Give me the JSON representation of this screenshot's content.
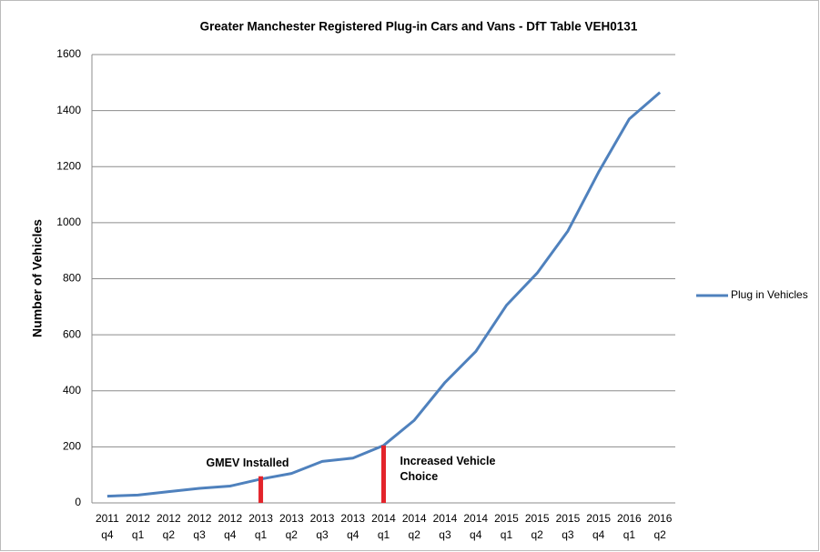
{
  "chart_data": {
    "type": "line",
    "title": "Greater Manchester Registered Plug-in Cars and Vans - DfT Table VEH0131",
    "y_label": "Number of Vehicles",
    "categories": [
      [
        "2011",
        "q4"
      ],
      [
        "2012",
        "q1"
      ],
      [
        "2012",
        "q2"
      ],
      [
        "2012",
        "q3"
      ],
      [
        "2012",
        "q4"
      ],
      [
        "2013",
        "q1"
      ],
      [
        "2013",
        "q2"
      ],
      [
        "2013",
        "q3"
      ],
      [
        "2013",
        "q4"
      ],
      [
        "2014",
        "q1"
      ],
      [
        "2014",
        "q2"
      ],
      [
        "2014",
        "q3"
      ],
      [
        "2014",
        "q4"
      ],
      [
        "2015",
        "q1"
      ],
      [
        "2015",
        "q2"
      ],
      [
        "2015",
        "q3"
      ],
      [
        "2015",
        "q4"
      ],
      [
        "2016",
        "q1"
      ],
      [
        "2016",
        "q2"
      ]
    ],
    "series": [
      {
        "name": "Plug in Vehicles",
        "color": "#4f81bd",
        "values": [
          24,
          28,
          40,
          52,
          60,
          85,
          105,
          148,
          160,
          205,
          295,
          430,
          540,
          705,
          820,
          970,
          1180,
          1370,
          1465
        ]
      }
    ],
    "ylim": [
      0,
      1600
    ],
    "yticks": [
      0,
      200,
      400,
      600,
      800,
      1000,
      1200,
      1400,
      1600
    ],
    "grid": true,
    "legend": "right",
    "annotations": [
      {
        "text": [
          "GMEV Installed"
        ],
        "at": 5,
        "value": 95,
        "color": "#e3242b"
      },
      {
        "text": [
          "Increased Vehicle",
          "Choice"
        ],
        "at": 9,
        "value": 205,
        "color": "#e3242b"
      }
    ]
  }
}
